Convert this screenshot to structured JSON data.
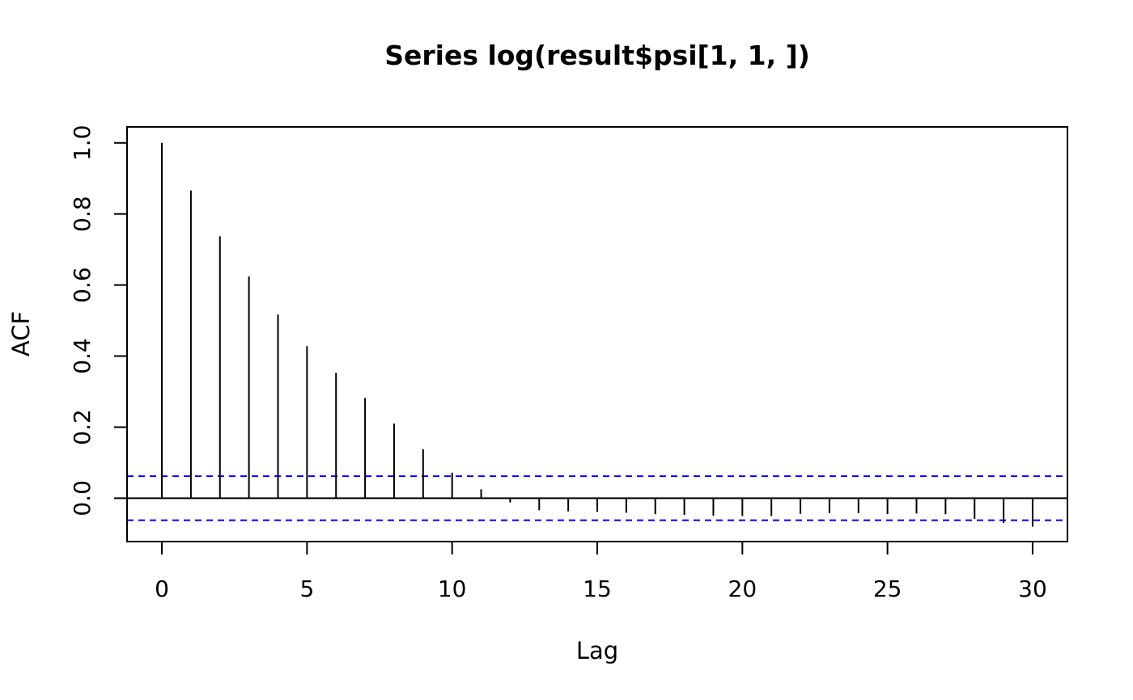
{
  "chart_data": {
    "type": "bar",
    "title": "Series  log(result$psi[1, 1, ])",
    "xlabel": "Lag",
    "ylabel": "ACF",
    "xlim": [
      -1.2,
      31.2
    ],
    "ylim": [
      -0.122,
      1.045
    ],
    "x_ticks": [
      "0",
      "5",
      "10",
      "15",
      "20",
      "25",
      "30"
    ],
    "y_ticks": [
      "0.0",
      "0.2",
      "0.4",
      "0.6",
      "0.8",
      "1.0"
    ],
    "lags": [
      0,
      1,
      2,
      3,
      4,
      5,
      6,
      7,
      8,
      9,
      10,
      11,
      12,
      13,
      14,
      15,
      16,
      17,
      18,
      19,
      20,
      21,
      22,
      23,
      24,
      25,
      26,
      27,
      28,
      29,
      30
    ],
    "acf": [
      1.0,
      0.866,
      0.737,
      0.624,
      0.517,
      0.428,
      0.353,
      0.282,
      0.21,
      0.138,
      0.072,
      0.025,
      -0.012,
      -0.034,
      -0.037,
      -0.038,
      -0.041,
      -0.045,
      -0.047,
      -0.049,
      -0.05,
      -0.05,
      -0.044,
      -0.042,
      -0.042,
      -0.045,
      -0.043,
      -0.045,
      -0.058,
      -0.07,
      -0.08
    ],
    "ci": 0.062,
    "ci_color": "#0000ff",
    "grid": false
  }
}
